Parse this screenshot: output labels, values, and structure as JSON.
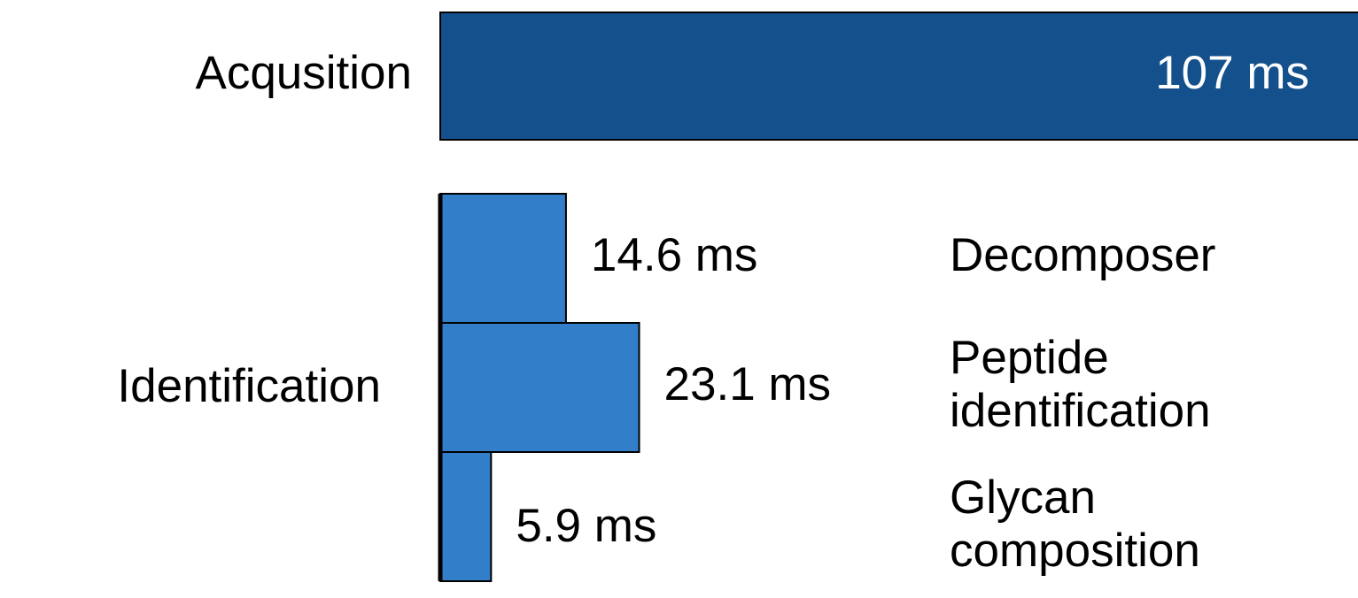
{
  "chart_data": {
    "type": "bar",
    "orientation": "horizontal",
    "title": "",
    "xlabel": "",
    "ylabel": "",
    "grid": false,
    "legend": "none",
    "groups": [
      {
        "name": "Acqusition",
        "color": "#14508c",
        "bars": [
          {
            "category": "Acqusition",
            "value": 107,
            "label": "107 ms"
          }
        ]
      },
      {
        "name": "Identification",
        "color": "#337ec8",
        "bars": [
          {
            "category": "Decomposer",
            "value": 14.6,
            "label": "14.6 ms"
          },
          {
            "category": "Peptide identification",
            "value": 23.1,
            "label": "23.1 ms"
          },
          {
            "category": "Glycan composition",
            "value": 5.9,
            "label": "5.9 ms"
          }
        ]
      }
    ],
    "unit": "ms"
  }
}
